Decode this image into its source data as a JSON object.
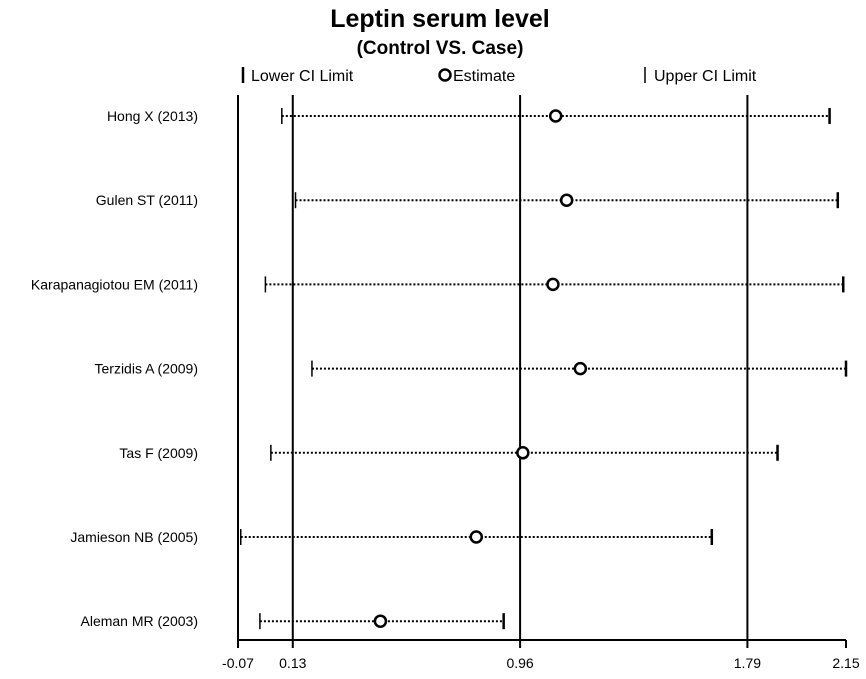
{
  "chart_data": {
    "type": "scatter",
    "title": "Leptin serum level",
    "subtitle": "(Control VS. Case)",
    "legend": {
      "placement": "top",
      "entries": [
        "Lower CI Limit",
        "Estimate",
        "Upper CI Limit"
      ]
    },
    "xlim": [
      -0.07,
      2.15
    ],
    "xticks": [
      {
        "value": -0.07,
        "label": "-0.07"
      },
      {
        "value": 0.13,
        "label": "0.13"
      },
      {
        "value": 0.96,
        "label": "0.96"
      },
      {
        "value": 1.79,
        "label": "1.79"
      },
      {
        "value": 2.15,
        "label": "2.15"
      }
    ],
    "reference_lines": [
      0.13,
      0.96,
      1.79
    ],
    "studies": [
      {
        "label": "Hong X (2013)",
        "lower": 0.09,
        "estimate": 1.09,
        "upper": 2.09
      },
      {
        "label": "Gulen ST (2011)",
        "lower": 0.14,
        "estimate": 1.13,
        "upper": 2.12
      },
      {
        "label": "Karapanagiotou EM (2011)",
        "lower": 0.03,
        "estimate": 1.08,
        "upper": 2.14
      },
      {
        "label": "Terzidis A (2009)",
        "lower": 0.2,
        "estimate": 1.18,
        "upper": 2.15
      },
      {
        "label": "Tas F (2009)",
        "lower": 0.05,
        "estimate": 0.97,
        "upper": 1.9
      },
      {
        "label": "Jamieson NB (2005)",
        "lower": -0.06,
        "estimate": 0.8,
        "upper": 1.66
      },
      {
        "label": "Aleman MR (2003)",
        "lower": 0.01,
        "estimate": 0.45,
        "upper": 0.9
      }
    ]
  }
}
